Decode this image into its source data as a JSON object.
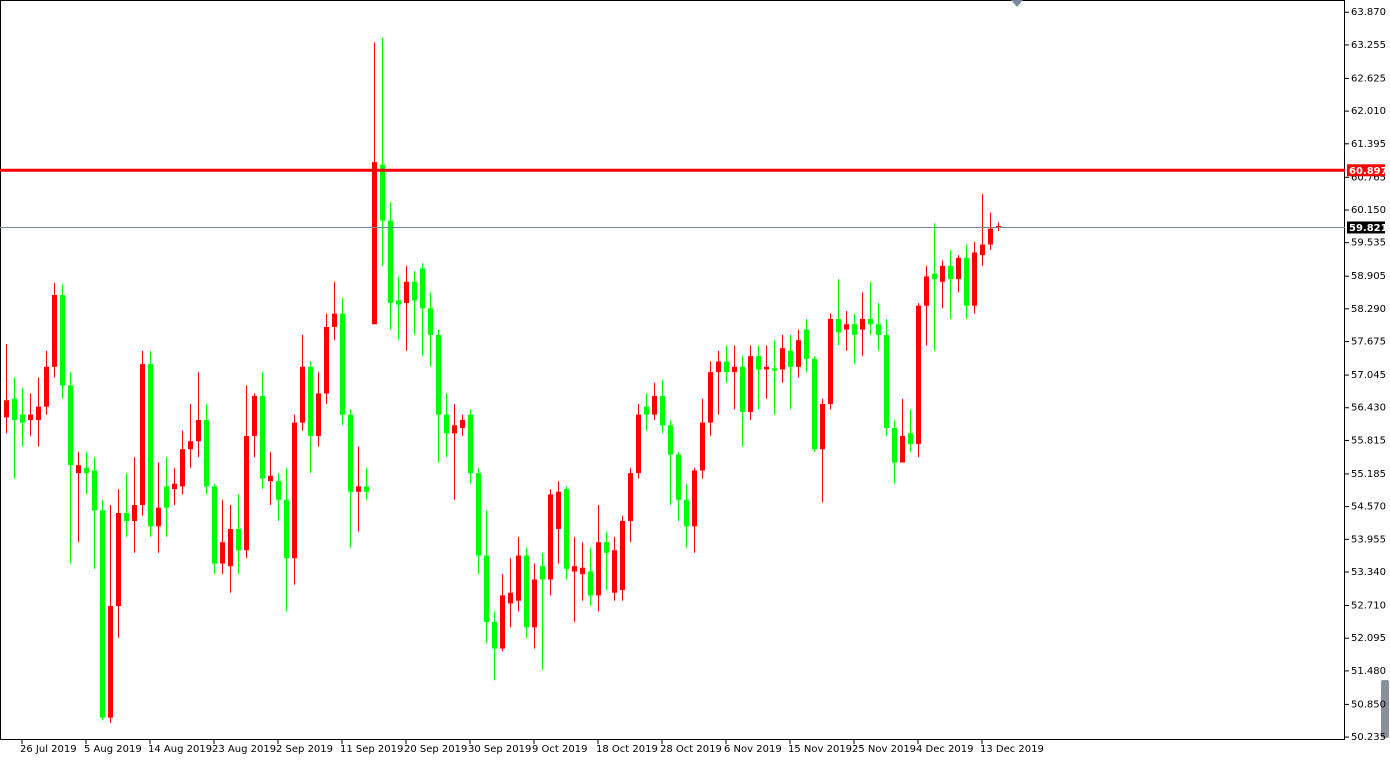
{
  "chart_data": {
    "type": "candlestick",
    "up_color": "#00ff00",
    "down_color": "#ff0000",
    "categories": [
      null,
      null,
      "26 Jul 2019",
      null,
      null,
      null,
      null,
      null,
      null,
      null,
      "5 Aug 2019",
      null,
      null,
      null,
      null,
      null,
      null,
      null,
      "14 Aug 2019",
      null,
      null,
      null,
      null,
      null,
      null,
      null,
      "23 Aug 2019",
      null,
      null,
      null,
      null,
      null,
      null,
      null,
      "2 Sep 2019",
      null,
      null,
      null,
      null,
      null,
      null,
      null,
      "11 Sep 2019",
      null,
      null,
      null,
      null,
      null,
      null,
      null,
      "20 Sep 2019",
      null,
      null,
      null,
      null,
      null,
      null,
      null,
      "30 Sep 2019",
      null,
      null,
      null,
      null,
      null,
      null,
      null,
      "9 Oct 2019",
      null,
      null,
      null,
      null,
      null,
      null,
      null,
      "18 Oct 2019",
      null,
      null,
      null,
      null,
      null,
      null,
      null,
      "28 Oct 2019",
      null,
      null,
      null,
      null,
      null,
      null,
      null,
      "6 Nov 2019",
      null,
      null,
      null,
      null,
      null,
      null,
      null,
      "15 Nov 2019",
      null,
      null,
      null,
      null,
      null,
      null,
      null,
      "25 Nov 2019",
      null,
      null,
      null,
      null,
      null,
      null,
      null,
      "4 Dec 2019",
      null,
      null,
      null,
      null,
      null,
      null,
      null,
      "13 Dec 2019",
      null,
      null
    ],
    "open": [
      56.57,
      56.2,
      56.15,
      56.3,
      56.45,
      57.2,
      58.55,
      56.85,
      55.35,
      55.35,
      55.2,
      54.5,
      50.6,
      52.7,
      54.45,
      54.3,
      54.6,
      57.25,
      54.2,
      54.55,
      54.55,
      55.0,
      55.65,
      55.8,
      56.2,
      54.95,
      53.5,
      53.9,
      54.15,
      53.75,
      55.9,
      56.65,
      55.1,
      55.15,
      54.7,
      53.6,
      56.15,
      57.2,
      55.9,
      56.7,
      57.95,
      58.2,
      56.3,
      54.85,
      54.95,
      54.85,
      61.05,
      59.95,
      58.4,
      58.37,
      58.8,
      58.45,
      58.3,
      57.8,
      56.3,
      55.95,
      56.1,
      56.2,
      55.2,
      53.65,
      52.4,
      51.9,
      52.9,
      52.95,
      53.65,
      52.3,
      53.2,
      53.2,
      54.8,
      54.85,
      53.4,
      53.45,
      53.42,
      52.9,
      53.9,
      53.7,
      53.75,
      54.3,
      55.2,
      56.3,
      56.3,
      56.65,
      56.1,
      55.55,
      54.7,
      54.2,
      55.25,
      56.15,
      57.1,
      57.3,
      57.1,
      57.2,
      56.35,
      57.4,
      57.15,
      57.2,
      57.13,
      57.55,
      57.2,
      57.7,
      57.35,
      55.65,
      56.5,
      58.1,
      57.85,
      58.0,
      57.8,
      58.1,
      58.0,
      57.8,
      56.05,
      55.4,
      55.9,
      55.75,
      58.35,
      58.9,
      58.85,
      59.1,
      58.85,
      59.25,
      58.35,
      59.35,
      59.5,
      59.8,
      59.85
    ],
    "high": [
      57.63,
      57.0,
      56.8,
      56.7,
      57.0,
      57.5,
      58.78,
      58.75,
      57.1,
      55.6,
      55.6,
      55.5,
      54.7,
      54.6,
      54.9,
      55.2,
      55.5,
      57.5,
      57.5,
      55.4,
      55.5,
      55.3,
      56.0,
      56.5,
      57.1,
      56.5,
      55.0,
      54.7,
      54.6,
      54.8,
      56.85,
      56.7,
      57.1,
      55.6,
      55.2,
      55.3,
      56.3,
      57.8,
      57.3,
      57.1,
      58.2,
      58.8,
      58.5,
      56.4,
      55.7,
      55.3,
      63.3,
      63.39,
      60.3,
      58.9,
      59.1,
      59.0,
      59.15,
      58.6,
      57.9,
      56.7,
      56.5,
      56.3,
      56.4,
      55.3,
      54.5,
      52.6,
      53.3,
      53.6,
      54.0,
      53.8,
      53.5,
      53.7,
      54.9,
      55.05,
      54.95,
      54.0,
      53.9,
      53.8,
      54.6,
      54.1,
      54.0,
      54.4,
      55.3,
      56.5,
      56.7,
      56.9,
      56.95,
      56.2,
      55.6,
      55.0,
      55.3,
      56.6,
      57.3,
      57.5,
      57.6,
      57.6,
      57.4,
      57.6,
      57.6,
      57.6,
      57.7,
      57.8,
      57.8,
      57.9,
      58.1,
      57.4,
      56.6,
      58.2,
      58.85,
      58.25,
      58.2,
      58.6,
      58.8,
      58.4,
      58.1,
      56.2,
      56.6,
      56.4,
      58.4,
      59.1,
      59.9,
      59.2,
      59.4,
      59.3,
      59.5,
      59.55,
      60.45,
      60.1,
      59.92
    ],
    "low": [
      55.95,
      55.1,
      55.7,
      55.9,
      55.7,
      56.3,
      57.0,
      56.6,
      53.5,
      53.9,
      54.8,
      53.4,
      50.55,
      50.5,
      52.1,
      54.0,
      53.7,
      54.4,
      54.0,
      53.7,
      54.0,
      54.6,
      54.8,
      55.3,
      55.5,
      54.8,
      53.3,
      53.3,
      52.95,
      53.3,
      53.6,
      55.5,
      54.9,
      54.6,
      54.3,
      52.6,
      53.1,
      56.0,
      55.2,
      55.7,
      56.5,
      57.7,
      56.1,
      53.8,
      54.1,
      54.7,
      58.0,
      59.1,
      57.9,
      57.7,
      57.5,
      57.8,
      57.4,
      57.2,
      55.4,
      55.5,
      54.7,
      55.9,
      55.0,
      53.3,
      52.0,
      51.3,
      51.85,
      52.3,
      52.6,
      52.1,
      51.9,
      51.5,
      52.9,
      53.5,
      53.2,
      52.4,
      52.8,
      52.7,
      52.6,
      53.0,
      52.8,
      52.8,
      53.9,
      55.1,
      56.0,
      56.2,
      55.95,
      54.6,
      54.3,
      53.8,
      53.7,
      55.1,
      55.9,
      56.3,
      56.9,
      56.4,
      55.7,
      56.2,
      56.4,
      56.6,
      56.3,
      56.9,
      56.4,
      57.0,
      57.1,
      55.6,
      54.65,
      56.4,
      57.6,
      57.5,
      57.25,
      57.4,
      57.8,
      57.5,
      55.9,
      55.0,
      55.4,
      55.6,
      55.5,
      57.6,
      57.5,
      58.3,
      58.1,
      58.6,
      58.1,
      58.2,
      59.1,
      59.4,
      59.75
    ],
    "close": [
      56.25,
      56.6,
      56.3,
      56.2,
      56.2,
      56.45,
      57.2,
      58.55,
      56.85,
      55.2,
      55.3,
      55.25,
      54.5,
      50.6,
      52.7,
      54.45,
      54.3,
      54.6,
      57.25,
      54.2,
      54.95,
      54.9,
      54.95,
      55.65,
      55.8,
      56.2,
      54.95,
      53.5,
      53.45,
      54.15,
      53.75,
      55.9,
      56.65,
      55.05,
      55.05,
      54.7,
      53.6,
      56.15,
      57.2,
      55.9,
      56.7,
      57.95,
      58.2,
      56.3,
      54.85,
      54.95,
      58.0,
      61.0,
      59.95,
      58.45,
      58.4,
      58.8,
      59.05,
      58.3,
      57.8,
      56.3,
      55.95,
      56.05,
      56.3,
      55.2,
      53.65,
      52.4,
      51.9,
      52.75,
      52.8,
      53.65,
      52.3,
      53.45,
      53.2,
      54.15,
      54.9,
      53.35,
      53.3,
      53.35,
      52.9,
      53.9,
      52.95,
      53.0,
      54.3,
      55.2,
      56.45,
      56.3,
      56.65,
      56.1,
      55.55,
      54.7,
      54.2,
      55.25,
      56.15,
      57.1,
      57.3,
      57.1,
      57.2,
      56.35,
      57.4,
      57.15,
      57.17,
      57.15,
      57.5,
      57.2,
      57.9,
      57.35,
      55.65,
      56.5,
      58.1,
      57.9,
      58.0,
      57.9,
      58.1,
      58.0,
      57.8,
      56.05,
      55.4,
      55.95,
      55.75,
      58.35,
      58.95,
      58.8,
      59.1,
      58.85,
      59.25,
      58.35,
      59.3,
      59.5,
      59.82
    ],
    "ylim": [
      50.18,
      64.1
    ],
    "yticks": [
      {
        "value": 63.87,
        "label": "63.870"
      },
      63.255,
      62.625,
      {
        "value": 62.01,
        "label": "62.010"
      },
      61.395,
      60.765,
      {
        "value": 60.15,
        "label": "60.150"
      },
      59.535,
      58.905,
      {
        "value": 58.29,
        "label": "58.290"
      },
      57.675,
      57.045,
      {
        "value": 56.43,
        "label": "56.430"
      },
      55.815,
      55.185,
      {
        "value": 54.57,
        "label": "54.570"
      },
      53.955,
      {
        "value": 53.34,
        "label": "53.340"
      },
      {
        "value": 52.71,
        "label": "52.710"
      },
      52.095,
      {
        "value": 51.48,
        "label": "51.480"
      },
      {
        "value": 50.85,
        "label": "50.850"
      },
      50.235
    ],
    "levels": [
      {
        "value": 60.897,
        "color": "#ff0000"
      },
      {
        "value": 59.821,
        "color": "#778899"
      }
    ]
  }
}
